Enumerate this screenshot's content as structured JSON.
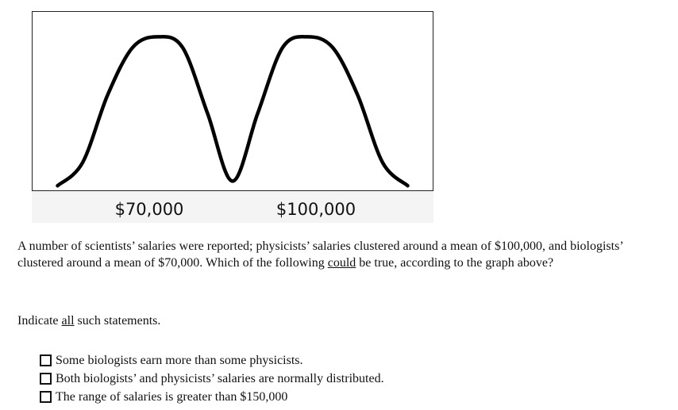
{
  "chart_data": {
    "type": "line",
    "x_tick_labels": [
      "$70,000",
      "$100,000"
    ],
    "x_ticks": [
      70000,
      100000
    ],
    "series": [
      {
        "x": [
          50000,
          55000,
          60000,
          65000,
          70000,
          75000,
          80000,
          85000,
          90000,
          95000,
          100000,
          105000,
          110000,
          115000,
          120000
        ],
        "y": [
          0.03,
          0.18,
          0.62,
          0.93,
          1.0,
          0.93,
          0.5,
          0.06,
          0.5,
          0.93,
          1.0,
          0.93,
          0.62,
          0.18,
          0.03
        ]
      }
    ],
    "xlim": [
      45000,
      125000
    ],
    "ylim": [
      0,
      1.1
    ],
    "grid": false,
    "legend": "none"
  },
  "question": {
    "part1": "A number of scientists’ salaries were reported; physicists’ salaries clustered around a mean of $100,000, and biologists’ clustered around a mean of $70,000. Which of the following ",
    "emphasis": "could",
    "part2": " be true, according to the graph above?"
  },
  "instruction": {
    "before": "Indicate ",
    "emphasis": "all",
    "after": " such statements."
  },
  "options": [
    {
      "label": "Some biologists earn more than some physicists.",
      "checked": false
    },
    {
      "label": "Both biologists’ and physicists’ salaries are normally distributed.",
      "checked": false
    },
    {
      "label": "The range of salaries is greater than $150,000",
      "checked": false
    }
  ]
}
